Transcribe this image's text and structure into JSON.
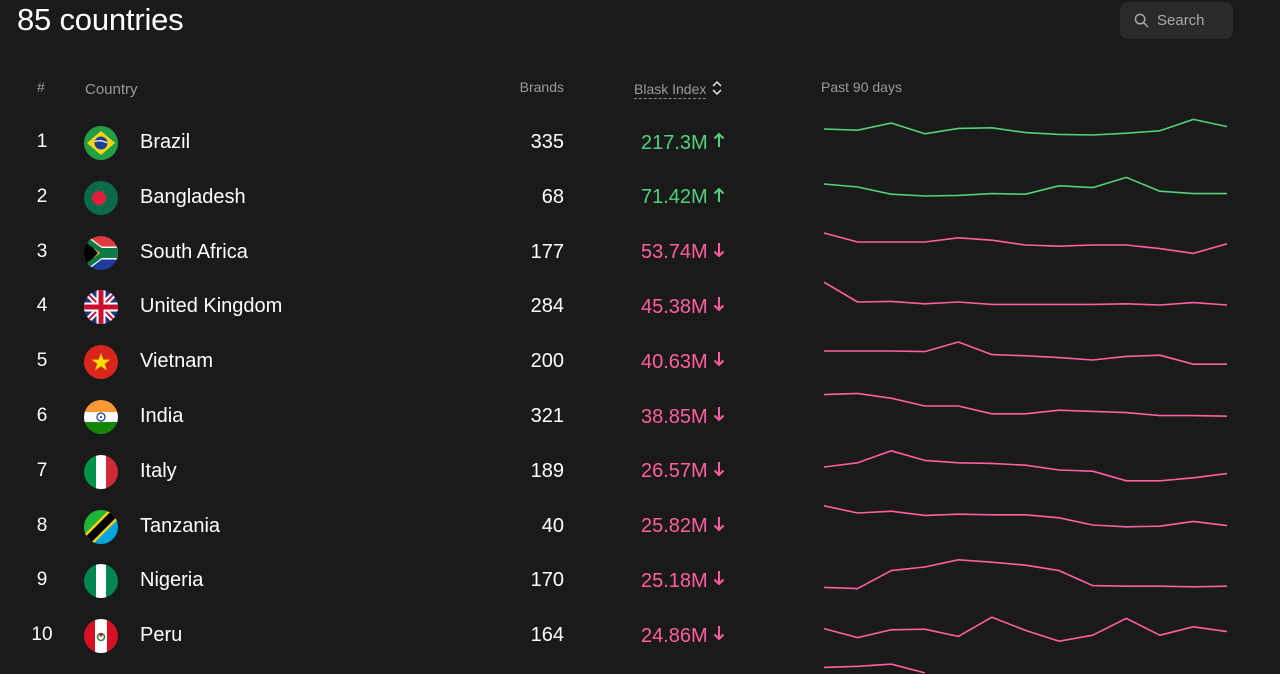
{
  "header": {
    "title": "85 countries",
    "search_label": "Search"
  },
  "columns": {
    "rank": "#",
    "country": "Country",
    "brands": "Brands",
    "index": "Blask Index",
    "past": "Past 90 days"
  },
  "colors": {
    "up": "#4ed37a",
    "down": "#ff5fa0",
    "background": "#1b1a1a"
  },
  "rows": [
    {
      "rank": "1",
      "country": "Brazil",
      "brands": "335",
      "index": "217.3M",
      "trend": "up",
      "spark": [
        60,
        58,
        70,
        52,
        61,
        62,
        54,
        51,
        50,
        53,
        57,
        76,
        64
      ]
    },
    {
      "rank": "2",
      "country": "Bangladesh",
      "brands": "68",
      "index": "71.42M",
      "trend": "up",
      "spark": [
        60,
        55,
        43,
        40,
        41,
        44,
        43,
        57,
        54,
        71,
        48,
        44,
        44
      ]
    },
    {
      "rank": "3",
      "country": "South Africa",
      "brands": "177",
      "index": "53.74M",
      "trend": "down",
      "spark": [
        70,
        55,
        55,
        55,
        62,
        58,
        50,
        48,
        50,
        50,
        44,
        36,
        52
      ]
    },
    {
      "rank": "4",
      "country": "United Kingdom",
      "brands": "284",
      "index": "45.38M",
      "trend": "down",
      "spark": [
        78,
        45,
        46,
        42,
        45,
        41,
        41,
        41,
        41,
        42,
        40,
        44,
        40
      ]
    },
    {
      "rank": "5",
      "country": "Vietnam",
      "brands": "200",
      "index": "40.63M",
      "trend": "down",
      "spark": [
        55,
        55,
        55,
        54,
        70,
        49,
        47,
        44,
        40,
        46,
        48,
        33,
        33
      ]
    },
    {
      "rank": "6",
      "country": "India",
      "brands": "321",
      "index": "38.85M",
      "trend": "down",
      "spark": [
        74,
        76,
        68,
        55,
        55,
        42,
        42,
        48,
        46,
        44,
        39,
        39,
        38
      ]
    },
    {
      "rank": "7",
      "country": "Italy",
      "brands": "189",
      "index": "26.57M",
      "trend": "down",
      "spark": [
        45,
        52,
        72,
        56,
        52,
        51,
        48,
        40,
        38,
        22,
        22,
        27,
        34
      ]
    },
    {
      "rank": "8",
      "country": "Tanzania",
      "brands": "40",
      "index": "25.82M",
      "trend": "down",
      "spark": [
        72,
        60,
        63,
        56,
        58,
        57,
        57,
        52,
        40,
        37,
        38,
        46,
        39
      ]
    },
    {
      "rank": "9",
      "country": "Nigeria",
      "brands": "170",
      "index": "25.18M",
      "trend": "down",
      "spark": [
        26,
        24,
        54,
        60,
        72,
        68,
        63,
        54,
        29,
        28,
        28,
        27,
        28
      ]
    },
    {
      "rank": "10",
      "country": "Peru",
      "brands": "164",
      "index": "24.86M",
      "trend": "down",
      "spark": [
        49,
        34,
        47,
        48,
        36,
        68,
        46,
        28,
        38,
        66,
        38,
        52,
        44
      ]
    }
  ],
  "partial_row": {
    "trend": "down",
    "spark": [
      12,
      14,
      18,
      2
    ]
  }
}
